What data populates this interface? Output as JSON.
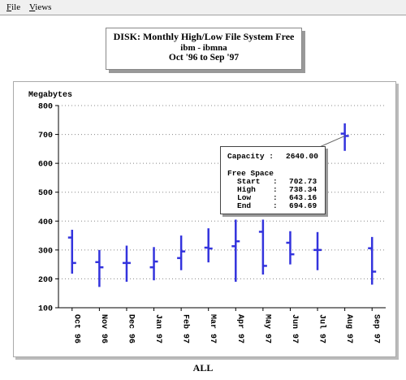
{
  "menu": {
    "file": "File",
    "views": "Views"
  },
  "title": {
    "line1": "DISK: Monthly High/Low File System Free",
    "line2": "ibm - ibmna",
    "line3": "Oct '96 to Sep '97"
  },
  "footer": "ALL",
  "info_box": {
    "capacity_label": "Capacity :",
    "capacity_value": "2640.00",
    "section": "Free Space",
    "rows": [
      {
        "label": "Start",
        "value": "702.73"
      },
      {
        "label": "High",
        "value": "738.34"
      },
      {
        "label": "Low",
        "value": "643.16"
      },
      {
        "label": "End",
        "value": "694.69"
      }
    ]
  },
  "chart_data": {
    "type": "high-low-open-close",
    "title": "DISK: Monthly High/Low File System Free",
    "subtitle": "ibm - ibmna",
    "ylabel": "Megabytes",
    "ylim": [
      100,
      800
    ],
    "yticks": [
      100,
      200,
      300,
      400,
      500,
      600,
      700,
      800
    ],
    "grid": true,
    "series_color": "#3333dd",
    "categories": [
      "Oct 96",
      "Nov 96",
      "Dec 96",
      "Jan 97",
      "Feb 97",
      "Mar 97",
      "Apr 97",
      "May 97",
      "Jun 97",
      "Jul 97",
      "Aug 97",
      "Sep 97"
    ],
    "start": [
      343,
      258,
      255,
      240,
      272,
      308,
      313,
      363,
      325,
      300,
      702.73,
      306
    ],
    "high": [
      370,
      300,
      315,
      310,
      350,
      375,
      405,
      405,
      365,
      362,
      738.34,
      345
    ],
    "low": [
      218,
      172,
      190,
      195,
      230,
      257,
      190,
      215,
      250,
      230,
      643.16,
      180
    ],
    "end": [
      255,
      240,
      255,
      260,
      295,
      305,
      330,
      245,
      285,
      300,
      694.69,
      225
    ]
  }
}
